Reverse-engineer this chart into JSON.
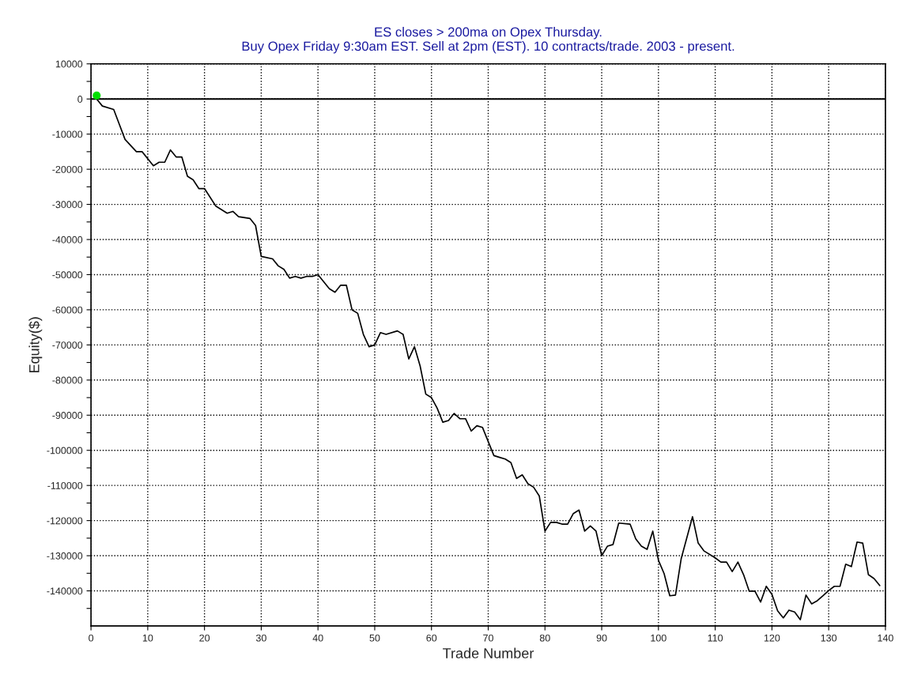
{
  "chart_data": {
    "type": "line",
    "title": "ES closes > 200ma on Opex Thursday.\nBuy Opex Friday 9:30am EST. Sell at 2pm (EST). 10 contracts/trade. 2003 - present.",
    "xlabel": "Trade Number",
    "ylabel": "Equity($)",
    "series": [
      {
        "color": "#000000",
        "x": [
          1,
          2,
          4,
          6,
          8,
          9,
          11,
          12,
          13,
          14,
          15,
          16,
          17,
          18,
          19,
          20,
          22,
          24,
          25,
          26,
          28,
          29,
          30,
          32,
          33,
          34,
          35,
          36,
          37,
          38,
          39,
          40,
          42,
          43,
          44,
          45,
          46,
          47,
          48,
          49,
          50,
          51,
          52,
          54,
          55,
          56,
          57,
          58,
          59,
          60,
          61,
          62,
          63,
          64,
          65,
          66,
          67,
          68,
          69,
          71,
          72,
          73,
          74,
          75,
          76,
          77,
          78,
          79,
          80,
          81,
          82,
          83,
          84,
          85,
          86,
          87,
          88,
          89,
          90,
          91,
          92,
          93,
          95,
          96,
          97,
          98,
          99,
          100,
          101,
          102,
          103,
          104,
          106,
          107,
          108,
          110,
          111,
          112,
          113,
          114,
          115,
          116,
          117,
          118,
          119,
          120,
          121,
          122,
          123,
          124,
          125,
          126,
          127,
          128,
          129,
          130,
          131,
          132,
          133,
          134,
          135,
          136,
          137,
          138,
          139
        ],
        "values": [
          0,
          -2000,
          -3000,
          -11500,
          -15000,
          -15000,
          -19000,
          -18000,
          -18000,
          -14500,
          -16500,
          -16500,
          -22000,
          -23000,
          -25500,
          -25500,
          -30500,
          -32500,
          -32000,
          -33500,
          -34000,
          -36000,
          -44800,
          -45500,
          -47500,
          -48500,
          -51000,
          -50500,
          -51000,
          -50500,
          -50500,
          -50000,
          -54000,
          -55000,
          -53000,
          -53000,
          -60000,
          -61000,
          -67000,
          -70500,
          -70000,
          -66500,
          -67000,
          -66000,
          -67000,
          -74000,
          -70500,
          -76000,
          -84000,
          -85000,
          -88000,
          -92000,
          -91500,
          -89500,
          -91000,
          -91000,
          -94500,
          -93000,
          -93500,
          -101500,
          -102000,
          -102500,
          -103500,
          -108000,
          -107000,
          -109500,
          -110500,
          -113000,
          -123000,
          -120500,
          -120500,
          -121000,
          -121000,
          -118000,
          -117000,
          -123000,
          -121500,
          -123000,
          -130000,
          -127300,
          -126800,
          -120700,
          -121000,
          -125200,
          -127300,
          -128200,
          -123000,
          -131300,
          -135100,
          -141400,
          -141200,
          -130900,
          -118900,
          -126400,
          -128600,
          -130600,
          -131800,
          -131800,
          -134500,
          -131800,
          -135400,
          -140100,
          -140100,
          -143200,
          -138700,
          -141000,
          -145700,
          -147700,
          -145500,
          -146000,
          -148200,
          -141200,
          -143700,
          -142800,
          -141400,
          -139900,
          -138700,
          -138700,
          -132400,
          -133100,
          -126100,
          -126400,
          -135400,
          -136500,
          -138500
        ]
      },
      {
        "type": "scatter",
        "color": "#00e000",
        "x": [
          1
        ],
        "values": [
          1000
        ]
      }
    ],
    "xlim": [
      0,
      140
    ],
    "xticks": [
      0,
      10,
      20,
      30,
      40,
      50,
      60,
      70,
      80,
      90,
      100,
      110,
      120,
      130,
      140
    ],
    "ylim": [
      -150000,
      10000
    ],
    "yticks": [
      {
        "value": -145000,
        "label": null
      },
      -140000,
      {
        "value": -135000,
        "label": null
      },
      -130000,
      {
        "value": -125000,
        "label": null
      },
      -120000,
      {
        "value": -115000,
        "label": null
      },
      -110000,
      {
        "value": -105000,
        "label": null
      },
      -100000,
      {
        "value": -95000,
        "label": null
      },
      -90000,
      {
        "value": -85000,
        "label": null
      },
      -80000,
      {
        "value": -75000,
        "label": null
      },
      -70000,
      {
        "value": -65000,
        "label": null
      },
      -60000,
      {
        "value": -55000,
        "label": null
      },
      -50000,
      {
        "value": -45000,
        "label": null
      },
      -40000,
      {
        "value": -35000,
        "label": null
      },
      -30000,
      {
        "value": -25000,
        "label": null
      },
      -20000,
      {
        "value": -15000,
        "label": null
      },
      -10000,
      {
        "value": -5000,
        "label": null
      },
      0,
      {
        "value": 5000,
        "label": null
      },
      10000
    ],
    "grid": true,
    "ref_lines": [
      {
        "axis": "y",
        "value": 0,
        "color": "#000000",
        "line_style": "solid"
      }
    ]
  }
}
